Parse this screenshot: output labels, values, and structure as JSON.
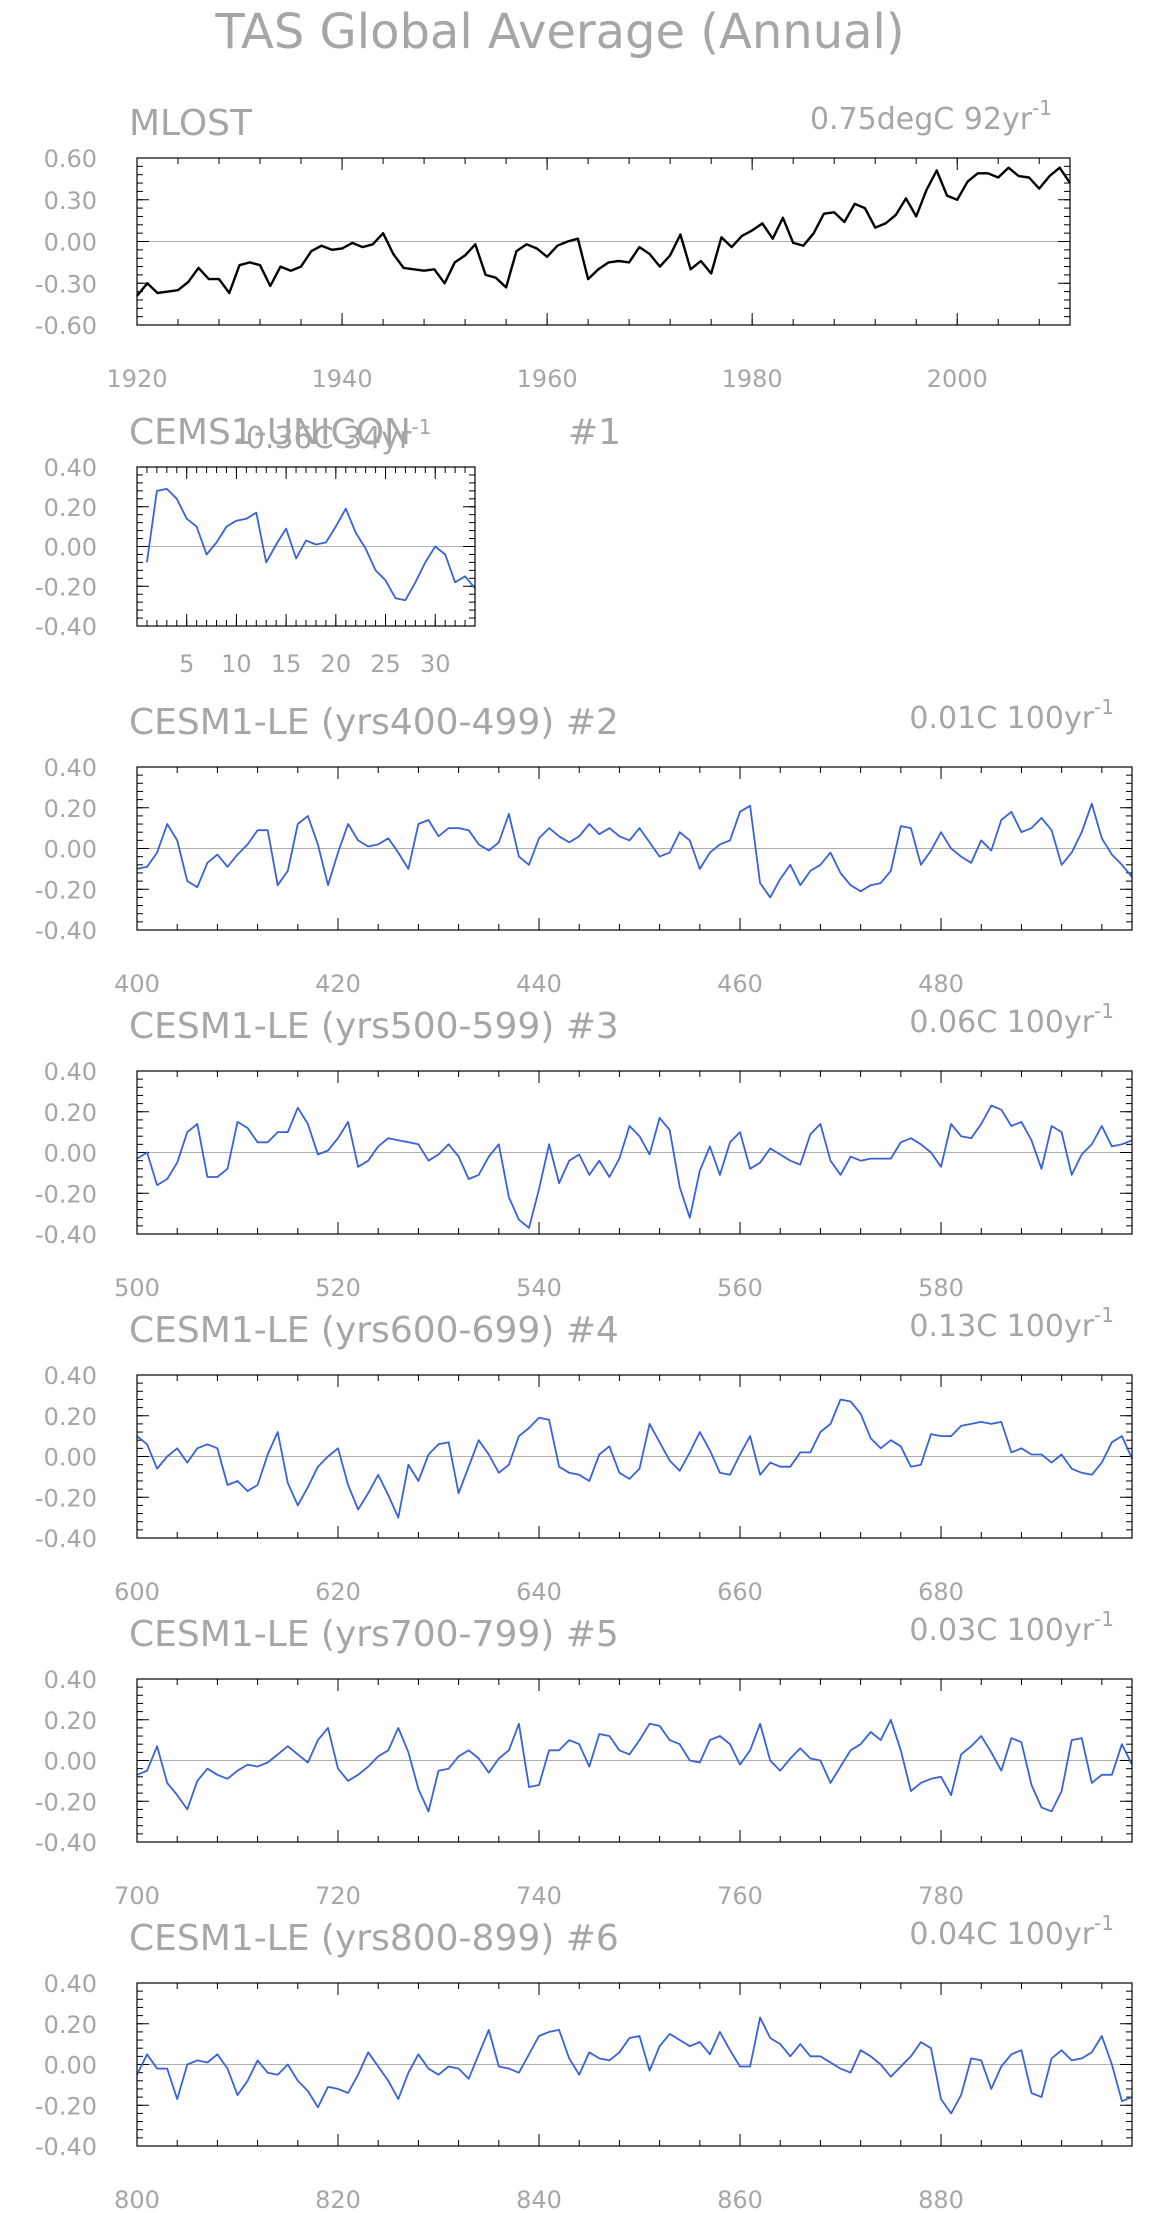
{
  "page": {
    "title": "TAS Global Average (Annual)"
  },
  "chart_data": [
    {
      "type": "line",
      "title": "MLOST",
      "right_title": "0.75degC 92yr",
      "right_title_sup": "-1",
      "series_color": "#000000",
      "ylim": [
        -0.6,
        0.6
      ],
      "y_ticks": [
        -0.6,
        -0.3,
        0.0,
        0.3,
        0.6
      ],
      "y_tick_labels": [
        "-0.60",
        "-0.30",
        "0.00",
        "0.30",
        "0.60"
      ],
      "xlim": [
        1920,
        2011
      ],
      "x_ticks": [
        1920,
        1940,
        1960,
        1980,
        2000
      ],
      "x_tick_labels": [
        "1920",
        "1940",
        "1960",
        "1980",
        "2000"
      ],
      "zero_line": true,
      "x_start": 1920,
      "values": [
        -0.39,
        -0.3,
        -0.37,
        -0.36,
        -0.35,
        -0.29,
        -0.19,
        -0.27,
        -0.27,
        -0.37,
        -0.17,
        -0.15,
        -0.17,
        -0.32,
        -0.18,
        -0.21,
        -0.18,
        -0.07,
        -0.03,
        -0.06,
        -0.05,
        -0.01,
        -0.04,
        -0.02,
        0.06,
        -0.09,
        -0.19,
        -0.2,
        -0.21,
        -0.2,
        -0.3,
        -0.15,
        -0.1,
        -0.02,
        -0.24,
        -0.26,
        -0.33,
        -0.07,
        -0.02,
        -0.05,
        -0.11,
        -0.03,
        0.0,
        0.02,
        -0.27,
        -0.2,
        -0.15,
        -0.14,
        -0.15,
        -0.04,
        -0.09,
        -0.18,
        -0.1,
        0.05,
        -0.2,
        -0.14,
        -0.23,
        0.03,
        -0.04,
        0.04,
        0.08,
        0.13,
        0.02,
        0.17,
        -0.01,
        -0.03,
        0.06,
        0.2,
        0.21,
        0.14,
        0.27,
        0.24,
        0.1,
        0.13,
        0.19,
        0.31,
        0.18,
        0.37,
        0.51,
        0.33,
        0.3,
        0.43,
        0.49,
        0.49,
        0.46,
        0.53,
        0.47,
        0.46,
        0.38,
        0.47,
        0.53,
        0.42
      ]
    },
    {
      "type": "line",
      "title": "CEMS1-UNICON",
      "right_title": "-0.36C 34yr",
      "right_title_sup": "-1",
      "center_title": "#1",
      "series_color": "#3a62d6",
      "ylim": [
        -0.4,
        0.4
      ],
      "y_ticks": [
        -0.4,
        -0.2,
        0.0,
        0.2,
        0.4
      ],
      "y_tick_labels": [
        "-0.40",
        "-0.20",
        "0.00",
        "0.20",
        "0.40"
      ],
      "xlim": [
        0,
        34
      ],
      "x_ticks": [
        5,
        10,
        15,
        20,
        25,
        30
      ],
      "x_tick_labels": [
        "5",
        "10",
        "15",
        "20",
        "25",
        "30"
      ],
      "zero_line": true,
      "x_start": 1,
      "values": [
        -0.08,
        0.28,
        0.29,
        0.24,
        0.14,
        0.1,
        -0.04,
        0.02,
        0.1,
        0.13,
        0.14,
        0.17,
        -0.08,
        0.01,
        0.09,
        -0.06,
        0.03,
        0.01,
        0.02,
        0.1,
        0.19,
        0.07,
        -0.01,
        -0.12,
        -0.17,
        -0.26,
        -0.27,
        -0.18,
        -0.08,
        0.0,
        -0.04,
        -0.18,
        -0.15,
        -0.21
      ]
    },
    {
      "type": "line",
      "title": "CESM1-LE (yrs400-499) #2",
      "right_title": "0.01C 100yr",
      "right_title_sup": "-1",
      "series_color": "#3a62d6",
      "ylim": [
        -0.4,
        0.4
      ],
      "y_ticks": [
        -0.4,
        -0.2,
        0.0,
        0.2,
        0.4
      ],
      "y_tick_labels": [
        "-0.40",
        "-0.20",
        "0.00",
        "0.20",
        "0.40"
      ],
      "xlim": [
        400,
        499
      ],
      "x_ticks": [
        400,
        420,
        440,
        460,
        480
      ],
      "x_tick_labels": [
        "400",
        "420",
        "440",
        "460",
        "480"
      ],
      "zero_line": true,
      "x_start": 400,
      "values": [
        -0.1,
        -0.09,
        -0.02,
        0.12,
        0.04,
        -0.16,
        -0.19,
        -0.07,
        -0.03,
        -0.09,
        -0.03,
        0.02,
        0.09,
        0.09,
        -0.18,
        -0.11,
        0.12,
        0.16,
        0.02,
        -0.18,
        -0.02,
        0.12,
        0.04,
        0.01,
        0.02,
        0.05,
        -0.02,
        -0.1,
        0.12,
        0.14,
        0.06,
        0.1,
        0.1,
        0.09,
        0.02,
        -0.01,
        0.03,
        0.17,
        -0.04,
        -0.08,
        0.05,
        0.1,
        0.06,
        0.03,
        0.06,
        0.12,
        0.07,
        0.1,
        0.06,
        0.04,
        0.1,
        0.03,
        -0.04,
        -0.02,
        0.08,
        0.04,
        -0.1,
        -0.02,
        0.02,
        0.04,
        0.18,
        0.21,
        -0.17,
        -0.24,
        -0.15,
        -0.08,
        -0.18,
        -0.11,
        -0.08,
        -0.02,
        -0.12,
        -0.18,
        -0.21,
        -0.18,
        -0.17,
        -0.11,
        0.11,
        0.1,
        -0.08,
        -0.01,
        0.08,
        0.0,
        -0.04,
        -0.07,
        0.04,
        -0.01,
        0.14,
        0.18,
        0.08,
        0.1,
        0.15,
        0.09,
        -0.08,
        -0.02,
        0.08,
        0.22,
        0.05,
        -0.03,
        -0.08,
        -0.14
      ]
    },
    {
      "type": "line",
      "title": "CESM1-LE (yrs500-599) #3",
      "right_title": "0.06C 100yr",
      "right_title_sup": "-1",
      "series_color": "#3a62d6",
      "ylim": [
        -0.4,
        0.4
      ],
      "y_ticks": [
        -0.4,
        -0.2,
        0.0,
        0.2,
        0.4
      ],
      "y_tick_labels": [
        "-0.40",
        "-0.20",
        "0.00",
        "0.20",
        "0.40"
      ],
      "xlim": [
        500,
        599
      ],
      "x_ticks": [
        500,
        520,
        540,
        560,
        580
      ],
      "x_tick_labels": [
        "500",
        "520",
        "540",
        "560",
        "580"
      ],
      "zero_line": true,
      "x_start": 500,
      "values": [
        -0.03,
        0.0,
        -0.16,
        -0.13,
        -0.05,
        0.1,
        0.14,
        -0.12,
        -0.12,
        -0.08,
        0.15,
        0.12,
        0.05,
        0.05,
        0.1,
        0.1,
        0.22,
        0.14,
        -0.01,
        0.01,
        0.07,
        0.15,
        -0.07,
        -0.04,
        0.03,
        0.07,
        0.06,
        0.05,
        0.04,
        -0.04,
        -0.01,
        0.04,
        -0.02,
        -0.13,
        -0.11,
        -0.02,
        0.04,
        -0.22,
        -0.33,
        -0.37,
        -0.18,
        0.04,
        -0.15,
        -0.04,
        -0.01,
        -0.11,
        -0.04,
        -0.12,
        -0.03,
        0.13,
        0.08,
        -0.01,
        0.17,
        0.11,
        -0.17,
        -0.32,
        -0.09,
        0.03,
        -0.11,
        0.05,
        0.1,
        -0.08,
        -0.05,
        0.02,
        -0.01,
        -0.04,
        -0.06,
        0.09,
        0.14,
        -0.04,
        -0.11,
        -0.02,
        -0.04,
        -0.03,
        -0.03,
        -0.03,
        0.05,
        0.07,
        0.04,
        0.0,
        -0.07,
        0.14,
        0.08,
        0.07,
        0.14,
        0.23,
        0.21,
        0.13,
        0.15,
        0.06,
        -0.08,
        0.13,
        0.1,
        -0.11,
        -0.01,
        0.04,
        0.13,
        0.03,
        0.04,
        0.06
      ]
    },
    {
      "type": "line",
      "title": "CESM1-LE (yrs600-699) #4",
      "right_title": "0.13C 100yr",
      "right_title_sup": "-1",
      "series_color": "#3a62d6",
      "ylim": [
        -0.4,
        0.4
      ],
      "y_ticks": [
        -0.4,
        -0.2,
        0.0,
        0.2,
        0.4
      ],
      "y_tick_labels": [
        "-0.40",
        "-0.20",
        "0.00",
        "0.20",
        "0.40"
      ],
      "xlim": [
        600,
        699
      ],
      "x_ticks": [
        600,
        620,
        640,
        660,
        680
      ],
      "x_tick_labels": [
        "600",
        "620",
        "640",
        "660",
        "680"
      ],
      "zero_line": true,
      "x_start": 600,
      "values": [
        0.1,
        0.06,
        -0.06,
        0.0,
        0.04,
        -0.03,
        0.04,
        0.06,
        0.04,
        -0.14,
        -0.12,
        -0.17,
        -0.14,
        0.01,
        0.12,
        -0.13,
        -0.24,
        -0.15,
        -0.05,
        0.0,
        0.04,
        -0.14,
        -0.26,
        -0.18,
        -0.09,
        -0.19,
        -0.3,
        -0.04,
        -0.12,
        0.01,
        0.06,
        0.07,
        -0.18,
        -0.05,
        0.08,
        0.01,
        -0.08,
        -0.04,
        0.1,
        0.14,
        0.19,
        0.18,
        -0.05,
        -0.08,
        -0.09,
        -0.12,
        0.01,
        0.05,
        -0.08,
        -0.11,
        -0.06,
        0.16,
        0.07,
        -0.02,
        -0.07,
        0.02,
        0.12,
        0.03,
        -0.08,
        -0.09,
        0.01,
        0.1,
        -0.09,
        -0.03,
        -0.05,
        -0.05,
        0.02,
        0.02,
        0.12,
        0.16,
        0.28,
        0.27,
        0.21,
        0.09,
        0.04,
        0.08,
        0.05,
        -0.05,
        -0.04,
        0.11,
        0.1,
        0.1,
        0.15,
        0.16,
        0.17,
        0.16,
        0.17,
        0.02,
        0.04,
        0.01,
        0.01,
        -0.03,
        0.01,
        -0.06,
        -0.08,
        -0.09,
        -0.03,
        0.07,
        0.1,
        -0.01
      ]
    },
    {
      "type": "line",
      "title": "CESM1-LE (yrs700-799) #5",
      "right_title": "0.03C 100yr",
      "right_title_sup": "-1",
      "series_color": "#3a62d6",
      "ylim": [
        -0.4,
        0.4
      ],
      "y_ticks": [
        -0.4,
        -0.2,
        0.0,
        0.2,
        0.4
      ],
      "y_tick_labels": [
        "-0.40",
        "-0.20",
        "0.00",
        "0.20",
        "0.40"
      ],
      "xlim": [
        700,
        799
      ],
      "x_ticks": [
        700,
        720,
        740,
        760,
        780
      ],
      "x_tick_labels": [
        "700",
        "720",
        "740",
        "760",
        "780"
      ],
      "zero_line": true,
      "x_start": 700,
      "values": [
        -0.07,
        -0.05,
        0.07,
        -0.11,
        -0.17,
        -0.24,
        -0.1,
        -0.04,
        -0.07,
        -0.09,
        -0.05,
        -0.02,
        -0.03,
        -0.01,
        0.03,
        0.07,
        0.03,
        -0.01,
        0.1,
        0.16,
        -0.04,
        -0.1,
        -0.07,
        -0.03,
        0.02,
        0.05,
        0.16,
        0.04,
        -0.14,
        -0.25,
        -0.05,
        -0.04,
        0.02,
        0.05,
        0.01,
        -0.06,
        0.01,
        0.05,
        0.18,
        -0.13,
        -0.12,
        0.05,
        0.05,
        0.1,
        0.08,
        -0.03,
        0.13,
        0.12,
        0.05,
        0.03,
        0.1,
        0.18,
        0.17,
        0.1,
        0.08,
        0.0,
        -0.01,
        0.1,
        0.12,
        0.08,
        -0.02,
        0.05,
        0.18,
        0.0,
        -0.05,
        0.01,
        0.06,
        0.01,
        0.0,
        -0.11,
        -0.03,
        0.05,
        0.08,
        0.14,
        0.1,
        0.2,
        0.05,
        -0.15,
        -0.11,
        -0.09,
        -0.08,
        -0.17,
        0.03,
        0.07,
        0.12,
        0.04,
        -0.05,
        0.11,
        0.09,
        -0.12,
        -0.23,
        -0.25,
        -0.15,
        0.1,
        0.11,
        -0.11,
        -0.07,
        -0.07,
        0.08,
        -0.02
      ]
    },
    {
      "type": "line",
      "title": "CESM1-LE (yrs800-899) #6",
      "right_title": "0.04C 100yr",
      "right_title_sup": "-1",
      "series_color": "#3a62d6",
      "ylim": [
        -0.4,
        0.4
      ],
      "y_ticks": [
        -0.4,
        -0.2,
        0.0,
        0.2,
        0.4
      ],
      "y_tick_labels": [
        "-0.40",
        "-0.20",
        "0.00",
        "0.20",
        "0.40"
      ],
      "xlim": [
        800,
        899
      ],
      "x_ticks": [
        800,
        820,
        840,
        860,
        880
      ],
      "x_tick_labels": [
        "800",
        "820",
        "840",
        "860",
        "880"
      ],
      "zero_line": true,
      "x_start": 800,
      "values": [
        -0.05,
        0.05,
        -0.02,
        -0.02,
        -0.17,
        0.0,
        0.02,
        0.01,
        0.05,
        -0.02,
        -0.15,
        -0.08,
        0.02,
        -0.04,
        -0.05,
        0.0,
        -0.08,
        -0.13,
        -0.21,
        -0.11,
        -0.12,
        -0.14,
        -0.05,
        0.06,
        -0.01,
        -0.08,
        -0.17,
        -0.04,
        0.05,
        -0.02,
        -0.05,
        -0.01,
        -0.02,
        -0.07,
        0.05,
        0.17,
        -0.01,
        -0.02,
        -0.04,
        0.05,
        0.14,
        0.16,
        0.17,
        0.03,
        -0.05,
        0.06,
        0.03,
        0.02,
        0.06,
        0.13,
        0.14,
        -0.03,
        0.09,
        0.15,
        0.12,
        0.09,
        0.11,
        0.05,
        0.16,
        0.07,
        -0.01,
        -0.01,
        0.23,
        0.13,
        0.1,
        0.04,
        0.1,
        0.04,
        0.04,
        0.01,
        -0.02,
        -0.04,
        0.07,
        0.04,
        0.0,
        -0.06,
        -0.01,
        0.04,
        0.11,
        0.08,
        -0.17,
        -0.24,
        -0.15,
        0.03,
        0.02,
        -0.12,
        -0.01,
        0.05,
        0.07,
        -0.14,
        -0.16,
        0.03,
        0.07,
        0.02,
        0.03,
        0.06,
        0.14,
        0.0,
        -0.18,
        -0.16
      ]
    }
  ]
}
